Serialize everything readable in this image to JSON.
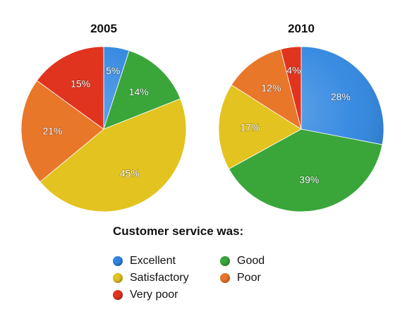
{
  "chart_data": [
    {
      "type": "pie",
      "title": "2005",
      "slices": [
        {
          "category": "Excellent",
          "value": 5,
          "label": "5%"
        },
        {
          "category": "Good",
          "value": 14,
          "label": "14%"
        },
        {
          "category": "Satisfactory",
          "value": 45,
          "label": "45%"
        },
        {
          "category": "Poor",
          "value": 21,
          "label": "21%"
        },
        {
          "category": "Very poor",
          "value": 15,
          "label": "15%"
        }
      ]
    },
    {
      "type": "pie",
      "title": "2010",
      "slices": [
        {
          "category": "Excellent",
          "value": 28,
          "label": "28%"
        },
        {
          "category": "Good",
          "value": 39,
          "label": "39%"
        },
        {
          "category": "Satisfactory",
          "value": 17,
          "label": "17%"
        },
        {
          "category": "Poor",
          "value": 12,
          "label": "12%"
        },
        {
          "category": "Very poor",
          "value": 4,
          "label": "4%"
        }
      ]
    }
  ],
  "legend": {
    "title": "Customer service was:",
    "position": "bottom",
    "items": [
      {
        "name": "Excellent",
        "color": "#2f86e0"
      },
      {
        "name": "Good",
        "color": "#3aa63a"
      },
      {
        "name": "Satisfactory",
        "color": "#e3c320"
      },
      {
        "name": "Poor",
        "color": "#e8772a"
      },
      {
        "name": "Very poor",
        "color": "#e0341f"
      }
    ]
  }
}
